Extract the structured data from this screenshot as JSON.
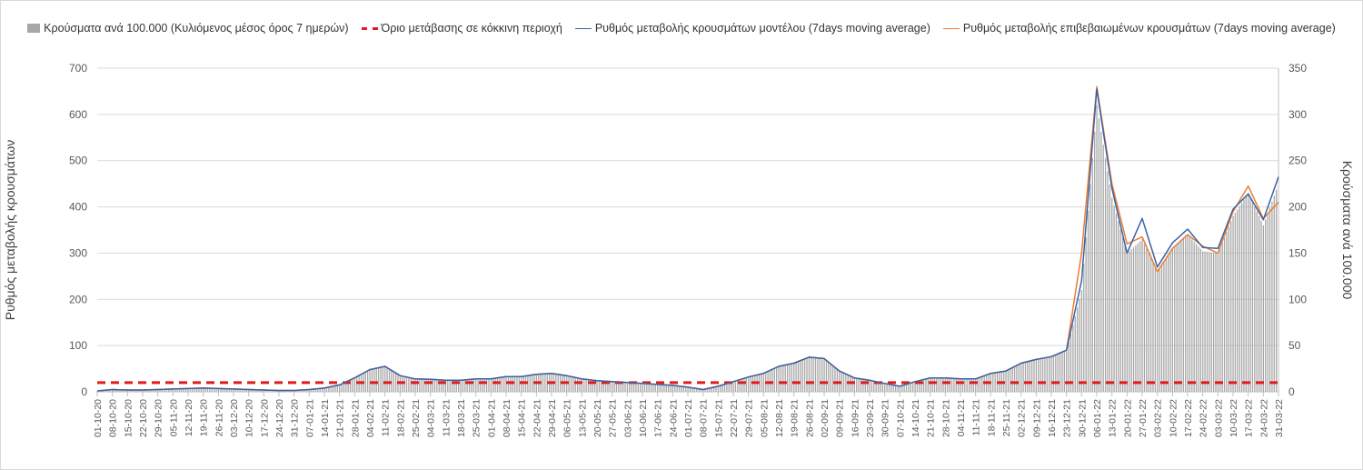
{
  "chart_data": {
    "type": "bar+line",
    "legend": [
      {
        "label": "Κρούσματα ανά 100.000 (Κυλιόμενος μέσος όρος 7 ημερών)",
        "color": "#a6a6a6",
        "kind": "bar"
      },
      {
        "label": "Όριο μετάβασης σε κόκκινη περιοχή",
        "color": "#e01b1b",
        "kind": "dashed"
      },
      {
        "label": "Ρυθμός μεταβολής κρουσμάτων μοντέλου (7days moving average)",
        "color": "#3a62a7",
        "kind": "line"
      },
      {
        "label": "Ρυθμός μεταβολής επιβεβαιωμένων κρουσμάτων (7days moving average)",
        "color": "#ed7d31",
        "kind": "line"
      }
    ],
    "legend_position": "top",
    "ylabel": "Ρυθμός μεταβολής κρουσμάτων",
    "y2label": "Κρούσματα ανά 100.000",
    "ylim": [
      0,
      700
    ],
    "y2lim": [
      0,
      350
    ],
    "yticks": [
      "0",
      "100",
      "200",
      "300",
      "400",
      "500",
      "600",
      "700"
    ],
    "y2ticks": [
      "0",
      "50",
      "100",
      "150",
      "200",
      "250",
      "300",
      "350"
    ],
    "grid": true,
    "categories": [
      "01-10-20",
      "08-10-20",
      "15-10-20",
      "22-10-20",
      "29-10-20",
      "05-11-20",
      "12-11-20",
      "19-11-20",
      "26-11-20",
      "03-12-20",
      "10-12-20",
      "17-12-20",
      "24-12-20",
      "31-12-20",
      "07-01-21",
      "14-01-21",
      "21-01-21",
      "28-01-21",
      "04-02-21",
      "11-02-21",
      "18-02-21",
      "25-02-21",
      "04-03-21",
      "11-03-21",
      "18-03-21",
      "25-03-21",
      "01-04-21",
      "08-04-21",
      "15-04-21",
      "22-04-21",
      "29-04-21",
      "06-05-21",
      "13-05-21",
      "20-05-21",
      "27-05-21",
      "03-06-21",
      "10-06-21",
      "17-06-21",
      "24-06-21",
      "01-07-21",
      "08-07-21",
      "15-07-21",
      "22-07-21",
      "29-07-21",
      "05-08-21",
      "12-08-21",
      "19-08-21",
      "26-08-21",
      "02-09-21",
      "09-09-21",
      "16-09-21",
      "23-09-21",
      "30-09-21",
      "07-10-21",
      "14-10-21",
      "21-10-21",
      "28-10-21",
      "04-11-21",
      "11-11-21",
      "18-11-21",
      "25-11-21",
      "02-12-21",
      "09-12-21",
      "16-12-21",
      "23-12-21",
      "30-12-21",
      "06-01-22",
      "13-01-22",
      "20-01-22",
      "27-01-22",
      "03-02-22",
      "10-02-22",
      "17-02-22",
      "24-02-22",
      "03-03-22",
      "10-03-22",
      "17-03-22",
      "24-03-22",
      "31-03-22"
    ],
    "threshold": 20,
    "bars_per_100k": [
      1,
      2,
      2,
      2,
      2,
      3,
      3,
      4,
      3,
      3,
      2,
      2,
      1,
      1,
      2,
      4,
      7,
      14,
      23,
      27,
      17,
      14,
      13,
      12,
      12,
      14,
      14,
      16,
      16,
      19,
      20,
      17,
      14,
      12,
      11,
      10,
      9,
      8,
      7,
      5,
      2,
      6,
      11,
      16,
      20,
      27,
      31,
      37,
      36,
      22,
      15,
      12,
      9,
      6,
      11,
      15,
      15,
      14,
      14,
      20,
      22,
      31,
      35,
      38,
      44,
      110,
      310,
      210,
      150,
      165,
      130,
      155,
      170,
      152,
      150,
      190,
      215,
      180,
      225
    ],
    "model_rate": [
      2,
      5,
      4,
      4,
      5,
      6,
      7,
      8,
      7,
      6,
      5,
      4,
      3,
      3,
      5,
      8,
      15,
      30,
      48,
      55,
      35,
      28,
      27,
      25,
      25,
      28,
      28,
      33,
      33,
      38,
      40,
      35,
      28,
      24,
      22,
      20,
      18,
      16,
      14,
      10,
      5,
      12,
      22,
      32,
      40,
      55,
      62,
      75,
      72,
      45,
      30,
      25,
      18,
      12,
      22,
      30,
      30,
      28,
      28,
      40,
      45,
      62,
      70,
      76,
      90,
      240,
      655,
      440,
      300,
      375,
      270,
      322,
      352,
      312,
      310,
      395,
      428,
      372,
      465
    ],
    "confirmed_rate": [
      2,
      5,
      4,
      4,
      5,
      6,
      7,
      8,
      7,
      6,
      5,
      4,
      3,
      3,
      5,
      8,
      15,
      30,
      48,
      55,
      35,
      28,
      27,
      25,
      25,
      28,
      28,
      33,
      33,
      38,
      40,
      35,
      28,
      24,
      22,
      20,
      18,
      16,
      14,
      10,
      5,
      12,
      22,
      32,
      40,
      55,
      62,
      75,
      72,
      45,
      30,
      25,
      18,
      12,
      22,
      30,
      30,
      28,
      28,
      40,
      45,
      62,
      70,
      76,
      90,
      300,
      660,
      450,
      320,
      335,
      260,
      310,
      340,
      315,
      300,
      390,
      445,
      375,
      410
    ]
  }
}
